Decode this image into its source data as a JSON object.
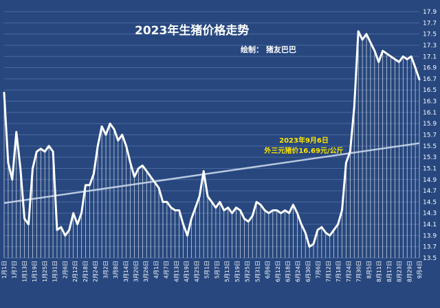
{
  "chart_data": {
    "type": "line",
    "title": "2023年生猪价格走势",
    "subtitle": "绘制：  猪友巴巴",
    "annotation": {
      "line1": "2023年9月6日",
      "line2": "外三元猪价16.69元/公斤"
    },
    "ylim": [
      13.5,
      17.9
    ],
    "yticks": [
      "13.5",
      "13.7",
      "13.9",
      "14.1",
      "14.3",
      "14.5",
      "14.7",
      "14.9",
      "15.1",
      "15.3",
      "15.5",
      "15.7",
      "15.9",
      "16.1",
      "16.3",
      "16.5",
      "16.7",
      "16.9",
      "17.1",
      "17.3",
      "17.5",
      "17.7",
      "17.9"
    ],
    "xticks": [
      "1月1日",
      "1月7日",
      "1月13日",
      "1月19日",
      "1月25日",
      "1月31日",
      "2月6日",
      "2月12日",
      "2月18日",
      "2月24日",
      "3月2日",
      "3月8日",
      "3月14日",
      "3月20日",
      "3月26日",
      "4月1日",
      "4月7日",
      "4月13日",
      "4月19日",
      "4月25日",
      "5月1日",
      "5月7日",
      "5月13日",
      "5月19日",
      "5月25日",
      "5月31日",
      "6月6日",
      "6月12日",
      "6月18日",
      "6月24日",
      "6月30日",
      "7月6日",
      "7月12日",
      "7月18日",
      "7月24日",
      "7月30日",
      "8月5日",
      "8月11日",
      "8月17日",
      "8月23日",
      "8月29日",
      "9月4日"
    ],
    "grid": true,
    "trendline": [
      14.48,
      15.55
    ],
    "series": [
      {
        "values": [
          16.45,
          15.2,
          14.9,
          15.75,
          15.1,
          14.2,
          14.1,
          15.1,
          15.4,
          15.45,
          15.4,
          15.5,
          15.4,
          14.0,
          14.05,
          13.9,
          14.0,
          14.3,
          14.1,
          14.3,
          14.8,
          14.8,
          15.0,
          15.5,
          15.85,
          15.7,
          15.9,
          15.8,
          15.6,
          15.7,
          15.5,
          15.2,
          14.95,
          15.1,
          15.15,
          15.05,
          14.95,
          14.85,
          14.75,
          14.5,
          14.5,
          14.4,
          14.35,
          14.35,
          14.1,
          13.9,
          14.2,
          14.4,
          14.6,
          15.05,
          14.6,
          14.5,
          14.4,
          14.5,
          14.35,
          14.4,
          14.3,
          14.4,
          14.35,
          14.2,
          14.15,
          14.25,
          14.5,
          14.45,
          14.35,
          14.3,
          14.35,
          14.35,
          14.3,
          14.35,
          14.3,
          14.45,
          14.3,
          14.1,
          13.95,
          13.7,
          13.75,
          14.0,
          14.05,
          13.95,
          13.9,
          14.0,
          14.1,
          14.35,
          15.2,
          15.4,
          16.2,
          17.55,
          17.4,
          17.5,
          17.35,
          17.2,
          17.0,
          17.2,
          17.15,
          17.1,
          17.05,
          17.0,
          17.1,
          17.05,
          17.1,
          16.9,
          16.69
        ]
      }
    ]
  }
}
